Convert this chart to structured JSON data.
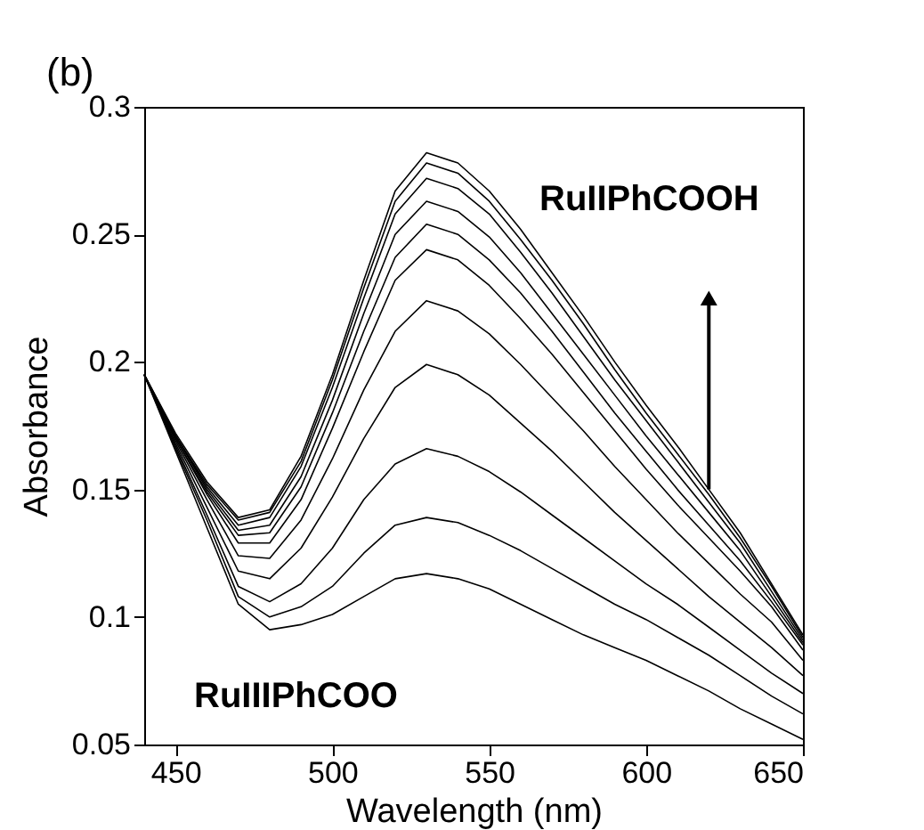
{
  "chart_data": {
    "type": "line",
    "xlabel": "Wavelength  (nm)",
    "ylabel": "Absorbance",
    "annotations": [
      "(b)",
      "RuIIPhCOOH",
      "RuIIIPhCOO"
    ],
    "x": [
      440,
      450,
      460,
      470,
      480,
      490,
      500,
      510,
      520,
      530,
      540,
      550,
      560,
      570,
      580,
      590,
      600,
      610,
      620,
      630,
      640,
      650
    ],
    "series": [
      {
        "color": "#000000",
        "values": [
          0.195,
          0.165,
          0.135,
          0.105,
          0.095,
          0.097,
          0.101,
          0.108,
          0.115,
          0.117,
          0.115,
          0.111,
          0.105,
          0.099,
          0.093,
          0.088,
          0.083,
          0.077,
          0.071,
          0.064,
          0.058,
          0.052
        ]
      },
      {
        "color": "#000000",
        "values": [
          0.195,
          0.166,
          0.138,
          0.108,
          0.1,
          0.104,
          0.112,
          0.125,
          0.136,
          0.139,
          0.137,
          0.132,
          0.126,
          0.119,
          0.112,
          0.105,
          0.099,
          0.092,
          0.085,
          0.077,
          0.069,
          0.062
        ]
      },
      {
        "color": "#000000",
        "values": [
          0.195,
          0.167,
          0.14,
          0.112,
          0.106,
          0.113,
          0.127,
          0.146,
          0.16,
          0.166,
          0.163,
          0.157,
          0.149,
          0.14,
          0.131,
          0.122,
          0.113,
          0.105,
          0.096,
          0.087,
          0.078,
          0.07
        ]
      },
      {
        "color": "#000000",
        "values": [
          0.195,
          0.168,
          0.143,
          0.118,
          0.115,
          0.127,
          0.147,
          0.17,
          0.19,
          0.199,
          0.195,
          0.187,
          0.176,
          0.165,
          0.153,
          0.141,
          0.13,
          0.119,
          0.108,
          0.098,
          0.088,
          0.077
        ]
      },
      {
        "color": "#000000",
        "values": [
          0.195,
          0.169,
          0.146,
          0.124,
          0.123,
          0.138,
          0.162,
          0.189,
          0.212,
          0.224,
          0.22,
          0.211,
          0.199,
          0.186,
          0.173,
          0.159,
          0.146,
          0.133,
          0.121,
          0.109,
          0.098,
          0.083
        ]
      },
      {
        "color": "#000000",
        "values": [
          0.195,
          0.17,
          0.148,
          0.129,
          0.129,
          0.146,
          0.174,
          0.204,
          0.232,
          0.244,
          0.24,
          0.23,
          0.217,
          0.203,
          0.188,
          0.173,
          0.158,
          0.144,
          0.131,
          0.118,
          0.104,
          0.087
        ]
      },
      {
        "color": "#000000",
        "values": [
          0.195,
          0.17,
          0.149,
          0.132,
          0.133,
          0.151,
          0.18,
          0.212,
          0.241,
          0.254,
          0.25,
          0.24,
          0.227,
          0.212,
          0.196,
          0.18,
          0.165,
          0.15,
          0.136,
          0.122,
          0.106,
          0.089
        ]
      },
      {
        "color": "#000000",
        "values": [
          0.195,
          0.171,
          0.15,
          0.134,
          0.136,
          0.155,
          0.185,
          0.219,
          0.25,
          0.263,
          0.259,
          0.249,
          0.235,
          0.219,
          0.203,
          0.187,
          0.171,
          0.156,
          0.141,
          0.126,
          0.108,
          0.09
        ]
      },
      {
        "color": "#000000",
        "values": [
          0.195,
          0.171,
          0.151,
          0.136,
          0.139,
          0.159,
          0.19,
          0.225,
          0.258,
          0.272,
          0.268,
          0.258,
          0.243,
          0.227,
          0.21,
          0.193,
          0.177,
          0.161,
          0.145,
          0.129,
          0.11,
          0.091
        ]
      },
      {
        "color": "#000000",
        "values": [
          0.195,
          0.171,
          0.152,
          0.138,
          0.141,
          0.161,
          0.193,
          0.229,
          0.263,
          0.278,
          0.274,
          0.263,
          0.248,
          0.232,
          0.215,
          0.197,
          0.18,
          0.164,
          0.148,
          0.131,
          0.112,
          0.092
        ]
      },
      {
        "color": "#000000",
        "values": [
          0.195,
          0.172,
          0.153,
          0.139,
          0.142,
          0.163,
          0.195,
          0.232,
          0.267,
          0.282,
          0.278,
          0.267,
          0.252,
          0.235,
          0.218,
          0.2,
          0.183,
          0.167,
          0.15,
          0.133,
          0.113,
          0.093
        ]
      }
    ],
    "xlim": [
      440,
      650
    ],
    "xticks": [
      450,
      500,
      550,
      600,
      650
    ],
    "ylim": [
      0.05,
      0.3
    ],
    "yticks": [
      0.05,
      0.1,
      0.15,
      0.2,
      0.25,
      0.3
    ],
    "grid": false,
    "legend": false,
    "marker": "none",
    "line_style": "solid"
  }
}
